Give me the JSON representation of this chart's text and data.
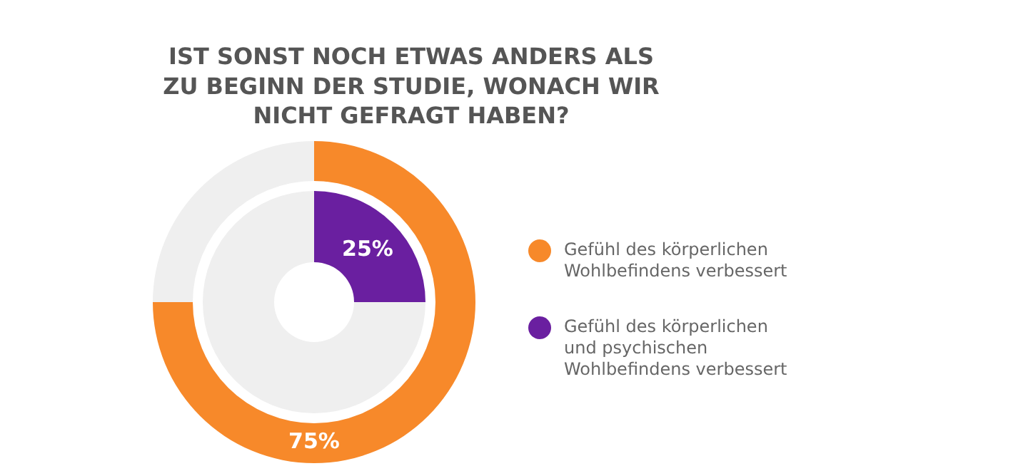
{
  "chart_data": [
    {
      "type": "donut",
      "title": "IST SONST NOCH ETWAS ANDERS ALS ZU BEGINN DER STUDIE, WONACH WIR NICHT GEFRAGT HABEN?",
      "categories": [
        "Gefühl des körperlichen Wohlbefindens verbessert",
        null
      ],
      "values": [
        75,
        25
      ],
      "colors": [
        "#f7892a",
        "#efefef"
      ],
      "value_labels": [
        "75%",
        null
      ],
      "legend": "right"
    },
    {
      "type": "donut",
      "categories": [
        "Gefühl des körperlichen und psychischen Wohlbefindens verbessert",
        null
      ],
      "values": [
        25,
        75
      ],
      "colors": [
        "#6a1fa0",
        "#efefef"
      ],
      "value_labels": [
        "25%",
        null
      ],
      "legend": "right"
    }
  ]
}
